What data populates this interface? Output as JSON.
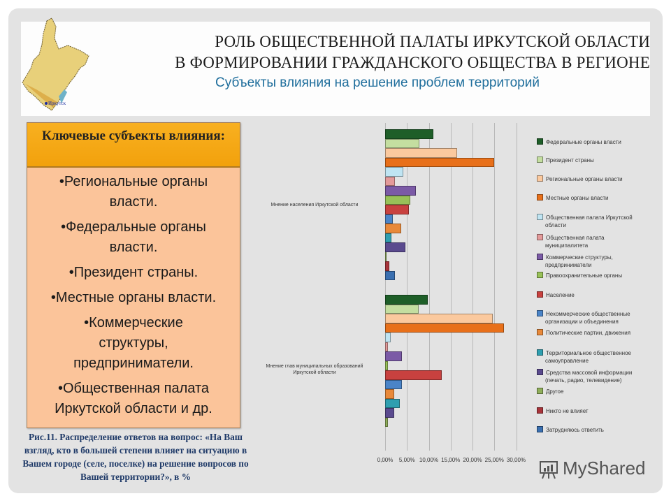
{
  "header": {
    "title_line1": "РОЛЬ ОБЩЕСТВЕННОЙ ПАЛАТЫ ИРКУТСКОЙ ОБЛАСТИ",
    "title_line2": "В ФОРМИРОВАНИИ ГРАЖДАНСКОГО ОБЩЕСТВА В РЕГИОНЕ",
    "subtitle": "Субъекты влияния на решение проблем территорий",
    "map_label": "Иркутск"
  },
  "keybox": {
    "title": "Ключевые субъекты влияния:",
    "items": [
      "•Региональные органы власти.",
      "•Федеральные органы власти.",
      "•Президент страны.",
      "•Местные органы власти.",
      "•Коммерческие структуры, предприниматели.",
      "•Общественная палата Иркутской области и др."
    ]
  },
  "caption": "Рис.11. Распределение ответов на вопрос: «На Ваш взгляд, кто в большей степени влияет на ситуацию в Вашем городе (селе, поселке) на решение вопросов по Вашей территории?», в %",
  "watermark": "MyShared",
  "chart_data": {
    "type": "bar",
    "orientation": "horizontal",
    "title": "",
    "xlabel": "",
    "ylabel": "",
    "xlim": [
      0,
      30
    ],
    "x_ticks": [
      "0,00%",
      "5,00%",
      "10,00%",
      "15,00%",
      "20,00%",
      "25,00%",
      "30,00%"
    ],
    "grid": true,
    "legend_position": "right",
    "categories": [
      "Мнение населения Иркутской области",
      "Мнение глав муниципальных образований Иркутской области"
    ],
    "series": [
      {
        "name": "Федеральные органы власти",
        "color": "#1e5e28",
        "values": [
          11.0,
          9.8
        ]
      },
      {
        "name": "Президент страны",
        "color": "#c4dea0",
        "values": [
          7.9,
          7.7
        ]
      },
      {
        "name": "Региональные органы власти",
        "color": "#fbc99e",
        "values": [
          16.4,
          24.6
        ]
      },
      {
        "name": "Местные органы власти",
        "color": "#e8701a",
        "values": [
          24.9,
          27.2
        ]
      },
      {
        "name": "Общественная палата Иркутской области",
        "color": "#bfe4f2",
        "values": [
          4.2,
          1.3
        ]
      },
      {
        "name": "Общественная палата муниципалитета",
        "color": "#e39a9a",
        "values": [
          2.2,
          0.6
        ]
      },
      {
        "name": "Коммерческие структуры, предприниматели",
        "color": "#7b5aa6",
        "values": [
          7.1,
          3.9
        ]
      },
      {
        "name": "Правоохранительные органы",
        "color": "#98c158",
        "values": [
          5.7,
          0.6
        ]
      },
      {
        "name": "Население",
        "color": "#c8413f",
        "values": [
          5.5,
          13.0
        ]
      },
      {
        "name": "Некоммерческие общественные организации и объединения",
        "color": "#4a84c8",
        "values": [
          1.7,
          3.9
        ]
      },
      {
        "name": "Политические партии, движения",
        "color": "#e8893a",
        "values": [
          3.7,
          2.0
        ]
      },
      {
        "name": "Территориальное общественное самоуправление",
        "color": "#2f9fb0",
        "values": [
          1.4,
          3.3
        ]
      },
      {
        "name": "Средства массовой информации (печать, радио, телевидение)",
        "color": "#5a4a8e",
        "values": [
          4.7,
          2.0
        ]
      },
      {
        "name": "Другое",
        "color": "#8fae5a",
        "values": [
          0.2,
          0.6
        ]
      },
      {
        "name": "Никто не влияет",
        "color": "#a8343a",
        "values": [
          1.0,
          0
        ]
      },
      {
        "name": "Затрудняюсь ответить",
        "color": "#3a6fb0",
        "values": [
          2.3,
          0
        ]
      }
    ]
  },
  "legend": {
    "items": [
      {
        "line1": "Федеральные органы власти",
        "line2": ""
      },
      {
        "line1": "Президент страны",
        "line2": ""
      },
      {
        "line1": "Региональные органы власти",
        "line2": ""
      },
      {
        "line1": "Местные органы власти",
        "line2": ""
      },
      {
        "line1": "Общественная палата Иркутской",
        "line2": "области"
      },
      {
        "line1": "Общественная палата",
        "line2": "муниципалитета"
      },
      {
        "line1": "Коммерческие структуры,",
        "line2": "предприниматели"
      },
      {
        "line1": "Правоохранительные органы",
        "line2": ""
      },
      {
        "line1": "Население",
        "line2": ""
      },
      {
        "line1": "Некоммерческие общественные",
        "line2": "организации и объединения"
      },
      {
        "line1": "Политические партии, движения",
        "line2": ""
      },
      {
        "line1": "Территориальное общественное",
        "line2": "самоуправление"
      },
      {
        "line1": "Средства массовой информации",
        "line2": "(печать, радио, телевидение)"
      },
      {
        "line1": "Другое",
        "line2": ""
      },
      {
        "line1": "Никто не влияет",
        "line2": ""
      },
      {
        "line1": "Затрудняюсь ответить",
        "line2": ""
      }
    ]
  },
  "chart_labels": {
    "cat1": "Мнение населения Иркутской области",
    "cat2_line1": "Мнение глав муниципальных образований",
    "cat2_line2": "Иркутской области"
  }
}
